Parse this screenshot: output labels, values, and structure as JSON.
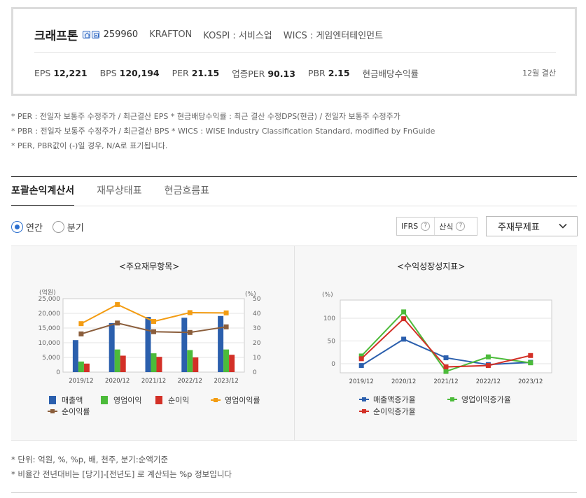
{
  "company": {
    "name": "크래프톤",
    "code": "259960",
    "english_name": "KRAFTON",
    "market": "KOSPI : 서비스업",
    "wics": "WICS : 게임엔터테인먼트"
  },
  "metrics": {
    "eps_label": "EPS",
    "eps_value": "12,221",
    "bps_label": "BPS",
    "bps_value": "120,194",
    "per_label": "PER",
    "per_value": "21.15",
    "industry_per_label": "업종PER",
    "industry_per_value": "90.13",
    "pbr_label": "PBR",
    "pbr_value": "2.15",
    "dividend_label": "현금배당수익률",
    "fiscal": "12월 결산"
  },
  "notes": [
    "* PER : 전일자 보통주 수정주가 / 최근결산 EPS * 현금배당수익률 : 최근 결산 수정DPS(현금) / 전일자 보통주 수정주가",
    "* PBR : 전일자 보통주 수정주가 / 최근결산 BPS * WICS : WISE Industry Classification Standard, modified by FnGuide",
    "* PER, PBR값이 (-)일 경우, N/A로 표기됩니다."
  ],
  "tabs": [
    "포괄손익계산서",
    "재무상태표",
    "현금흐름표"
  ],
  "radios": [
    "연간",
    "분기"
  ],
  "ifrs_label": "IFRS",
  "calc_label": "산식",
  "help_mark": "?",
  "select_value": "주재무제표",
  "chart_titles": [
    "<주요재무항목>",
    "<수익성장성지표>"
  ],
  "unit_notes": [
    "* 단위: 억원, %, %p, 배, 천주, 분기:순액기준",
    "* 비율간 전년대비는 [당기]-[전년도] 로 계산되는 %p 정보입니다"
  ],
  "colors": {
    "revenue": "#2b5fad",
    "op_income": "#4cbb3a",
    "net_income": "#d33027",
    "op_margin": "#f39c12",
    "net_margin": "#8b5e3c",
    "radio_accent": "#2b6fcf"
  },
  "chart_data": [
    {
      "type": "bar",
      "title": "<주요재무항목>",
      "ylabel": "(억원)",
      "y2label": "(%)",
      "categories": [
        "2019/12",
        "2020/12",
        "2021/12",
        "2022/12",
        "2023/12"
      ],
      "ylim": [
        0,
        25000
      ],
      "y2lim": [
        0,
        50
      ],
      "yticks": [
        "0",
        "5,000",
        "10,000",
        "15,000",
        "20,000",
        "25,000"
      ],
      "y2ticks": [
        "0",
        "10",
        "20",
        "30",
        "40",
        "50"
      ],
      "series": [
        {
          "name": "매출액",
          "kind": "bar",
          "color": "#2b5fad",
          "values": [
            10900,
            16700,
            18800,
            18500,
            19100
          ]
        },
        {
          "name": "영업이익",
          "kind": "bar",
          "color": "#4cbb3a",
          "values": [
            3600,
            7700,
            6400,
            7500,
            7700
          ]
        },
        {
          "name": "순이익",
          "kind": "bar",
          "color": "#d33027",
          "values": [
            2900,
            5600,
            5200,
            5000,
            5900
          ]
        },
        {
          "name": "영업이익률",
          "kind": "line",
          "axis": "right",
          "color": "#f39c12",
          "values": [
            33,
            46,
            34.5,
            40.5,
            40.3
          ]
        },
        {
          "name": "순이익률",
          "kind": "line",
          "axis": "right",
          "color": "#8b5e3c",
          "values": [
            26,
            33.4,
            27.5,
            27,
            30.8
          ]
        }
      ],
      "grid": true,
      "legend": "bottom"
    },
    {
      "type": "line",
      "title": "<수익성장성지표>",
      "ylabel": "(%)",
      "categories": [
        "2019/12",
        "2020/12",
        "2021/12",
        "2022/12",
        "2023/12"
      ],
      "ylim": [
        -20,
        140
      ],
      "yticks": [
        "0",
        "50",
        "100"
      ],
      "series": [
        {
          "name": "매출액증가율",
          "color": "#2b5fad",
          "values": [
            -4,
            54,
            13,
            -2,
            3
          ]
        },
        {
          "name": "영업이익증가율",
          "color": "#4cbb3a",
          "values": [
            17,
            114,
            -17,
            15,
            2
          ]
        },
        {
          "name": "순이익증가율",
          "color": "#d33027",
          "values": [
            11,
            99,
            -7,
            -4,
            18
          ]
        }
      ],
      "grid": true,
      "legend": "bottom"
    }
  ]
}
